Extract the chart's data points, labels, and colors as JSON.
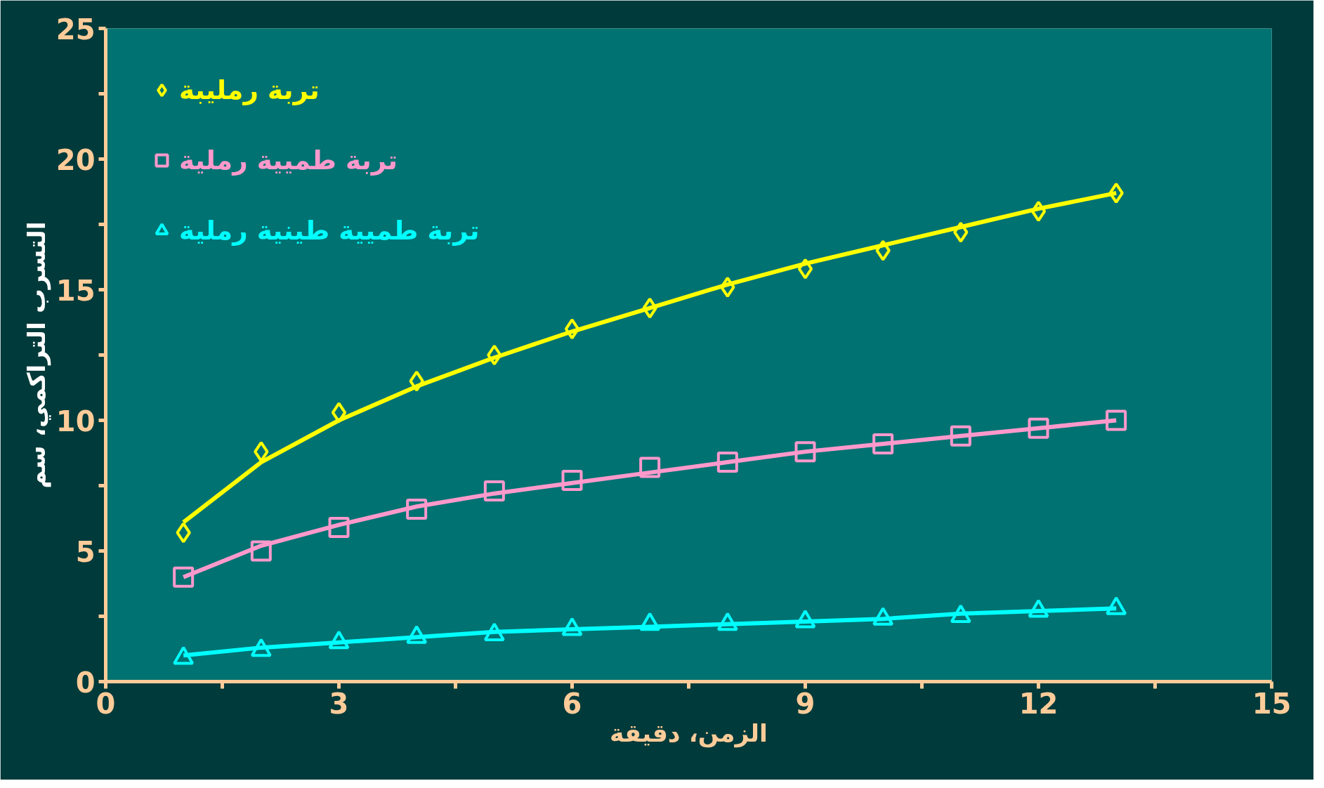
{
  "chart_data": {
    "type": "scatter",
    "xlabel": "الزمن، دقيقة",
    "ylabel": "التسرب التراكمي، سم",
    "xlim": [
      0,
      15
    ],
    "ylim": [
      0,
      25
    ],
    "xticks": [
      0,
      {
        "value": 1.5,
        "label": null
      },
      3,
      {
        "value": 4.5,
        "label": null
      },
      6,
      {
        "value": 7.5,
        "label": null
      },
      9,
      {
        "value": 10.5,
        "label": null
      },
      12,
      {
        "value": 13.5,
        "label": null
      },
      15
    ],
    "yticks": [
      0,
      {
        "value": 2.5,
        "label": null
      },
      5,
      {
        "value": 7.5,
        "label": null
      },
      10,
      {
        "value": 12.5,
        "label": null
      },
      15,
      {
        "value": 17.5,
        "label": null
      },
      20,
      {
        "value": 22.5,
        "label": null
      },
      25
    ],
    "x": [
      1,
      2,
      3,
      4,
      5,
      6,
      7,
      8,
      9,
      10,
      11,
      12,
      13
    ],
    "legend": "top left",
    "grid": false,
    "series": [
      {
        "name": "تربة رمليبة",
        "color": "#ffff00",
        "marker": "diamond",
        "values": [
          5.7,
          8.8,
          10.3,
          11.5,
          12.5,
          13.5,
          14.3,
          15.1,
          15.8,
          16.5,
          17.2,
          18.0,
          18.7
        ]
      },
      {
        "name": "تربة طميية رملية",
        "color": "#ff99cc",
        "marker": "square",
        "values": [
          4.0,
          5.0,
          5.9,
          6.6,
          7.3,
          7.7,
          8.2,
          8.4,
          8.8,
          9.1,
          9.4,
          9.7,
          10.0
        ]
      },
      {
        "name": "تربة طميية طينية رملية",
        "color": "#00ffff",
        "marker": "triangle",
        "values": [
          0.9,
          1.2,
          1.5,
          1.7,
          1.8,
          2.0,
          2.2,
          2.2,
          2.3,
          2.4,
          2.5,
          2.7,
          2.8
        ]
      },
      {
        "type": "line",
        "color": "#ffff00",
        "marker": "none",
        "values": [
          6.1,
          8.4,
          10.0,
          11.3,
          12.4,
          13.4,
          14.3,
          15.2,
          16.0,
          16.7,
          17.4,
          18.1,
          18.7
        ]
      },
      {
        "type": "line",
        "color": "#ff99cc",
        "marker": "none",
        "values": [
          4.0,
          5.2,
          6.0,
          6.7,
          7.2,
          7.6,
          8.0,
          8.4,
          8.8,
          9.1,
          9.4,
          9.7,
          10.0
        ]
      },
      {
        "type": "line",
        "color": "#00ffff",
        "marker": "none",
        "values": [
          1.0,
          1.3,
          1.5,
          1.7,
          1.9,
          2.0,
          2.1,
          2.2,
          2.3,
          2.4,
          2.6,
          2.7,
          2.8
        ]
      }
    ]
  }
}
